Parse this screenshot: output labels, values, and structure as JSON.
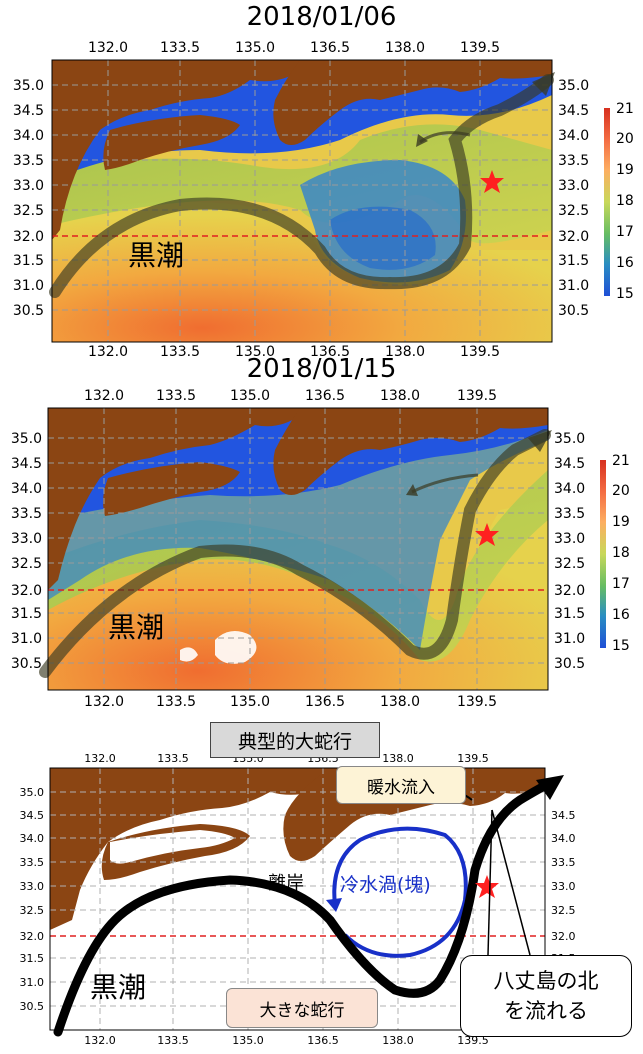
{
  "panel1": {
    "title": "2018/01/06",
    "region_label": "黒潮"
  },
  "panel2": {
    "title": "2018/01/15",
    "region_label": "黒潮"
  },
  "panel3": {
    "title": "典型的大蛇行",
    "region_label": "黒潮",
    "callout_warm": "暖水流入",
    "callout_eddy": "冷水渦(塊)",
    "callout_coast": "離岸",
    "callout_meander": "大きな蛇行",
    "callout_hachijo_1": "八丈島の北",
    "callout_hachijo_2": "を流れる"
  },
  "axes": {
    "lon_ticks": [
      "132.0",
      "133.5",
      "135.0",
      "136.5",
      "138.0",
      "139.5"
    ],
    "lat_ticks": [
      "35.0",
      "34.5",
      "34.0",
      "33.5",
      "33.0",
      "32.5",
      "32.0",
      "31.5",
      "31.0",
      "30.5"
    ]
  },
  "colorbar": {
    "ticks": [
      "21",
      "20",
      "19",
      "18",
      "17",
      "16",
      "15"
    ],
    "colors": [
      "#d7301f",
      "#f46d43",
      "#fdae61",
      "#fee08b",
      "#a6d96a",
      "#66bd63",
      "#3288bd",
      "#1f4fd6"
    ]
  },
  "colors": {
    "land": "#8b4513",
    "cold": "#2255e0",
    "warm": "#f08c2c",
    "mid": "#a8c850",
    "star": "#ff2020",
    "ref_line": "#e02020"
  }
}
